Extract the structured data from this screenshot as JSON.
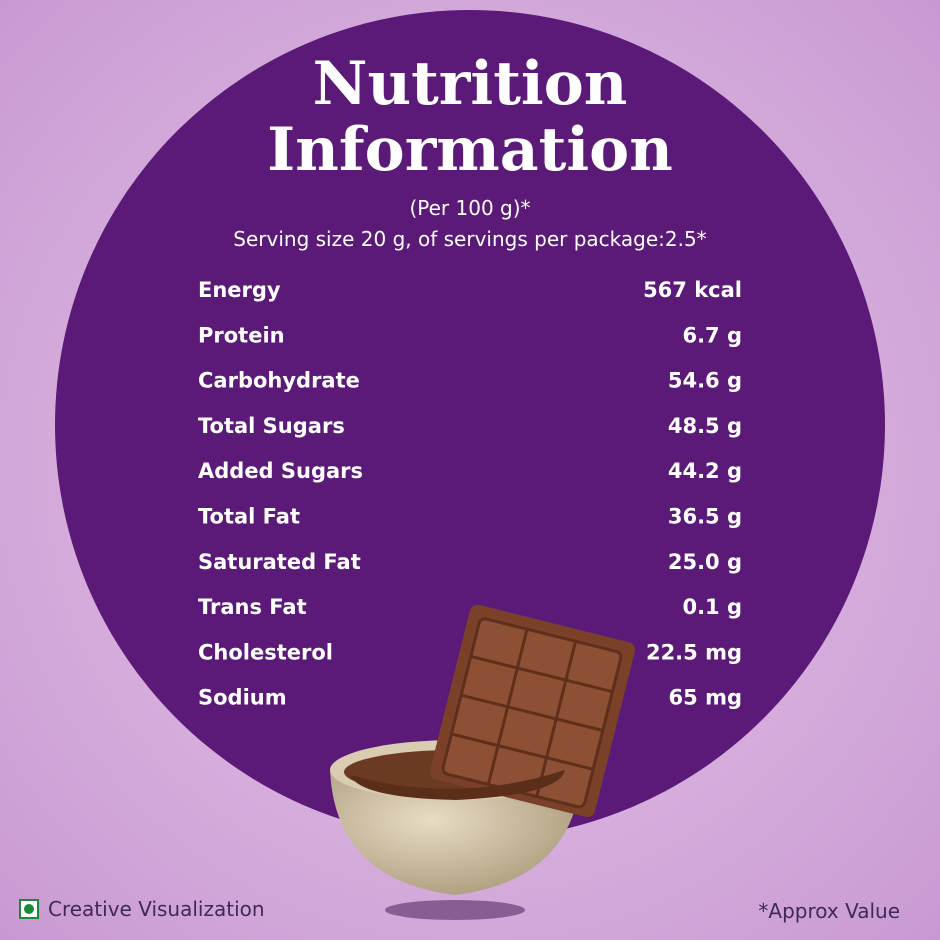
{
  "header": {
    "title_lines": [
      "Nutrition",
      "Information"
    ],
    "basis": "(Per 100 g)*",
    "serving": "Serving size 20 g, of servings per package:2.5*"
  },
  "table": {
    "rows": [
      [
        "Energy",
        "567 kcal"
      ],
      [
        "Protein",
        "6.7 g"
      ],
      [
        "Carbohydrate",
        "54.6 g"
      ],
      [
        "Total Sugars",
        "48.5 g"
      ],
      [
        "Added Sugars",
        "44.2 g"
      ],
      [
        "Total Fat",
        "36.5 g"
      ],
      [
        "Saturated Fat",
        "25.0 g"
      ],
      [
        "Trans Fat",
        "0.1 g"
      ],
      [
        "Cholesterol",
        "22.5 mg"
      ],
      [
        "Sodium",
        "65 mg"
      ]
    ]
  },
  "footer": {
    "left_note": "Creative Visualization",
    "right_note": "*Approx Value"
  }
}
